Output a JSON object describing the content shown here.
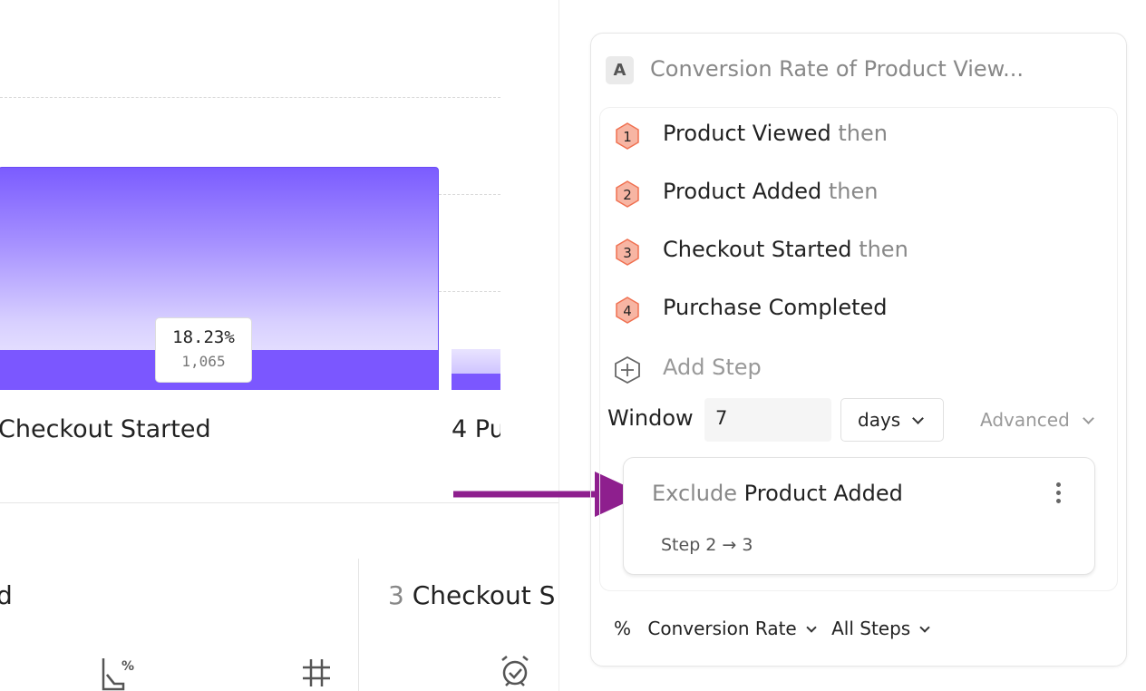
{
  "chart_data": {
    "type": "bar",
    "categories": [
      "Checkout Started",
      "Purchase Completed"
    ],
    "category_labels": [
      "Checkout Started",
      "4 Pu"
    ],
    "tooltip": {
      "percent": "18.23%",
      "count": "1,065"
    },
    "bar_color": "#7b57ff",
    "grid": true
  },
  "bottom": {
    "col1_label": "d",
    "col2_number": "3",
    "col2_label": "Checkout S"
  },
  "panel": {
    "badge": "A",
    "title": "Conversion Rate of Product View...",
    "steps": [
      {
        "n": "1",
        "name": "Product Viewed",
        "suffix": "then"
      },
      {
        "n": "2",
        "name": "Product Added",
        "suffix": "then"
      },
      {
        "n": "3",
        "name": "Checkout Started",
        "suffix": "then"
      },
      {
        "n": "4",
        "name": "Purchase Completed",
        "suffix": ""
      }
    ],
    "add_step": "Add Step",
    "window_label": "Window",
    "window_value": "7",
    "window_unit": "days",
    "advanced": "Advanced",
    "exclude": {
      "prefix": "Exclude",
      "event": "Product Added",
      "range": "Step 2 → 3"
    },
    "metric_symbol": "%",
    "metric": "Conversion Rate",
    "steps_scope": "All Steps",
    "step_badge_color": "#f7b5a3",
    "arrow_color": "#8e1f8e"
  }
}
